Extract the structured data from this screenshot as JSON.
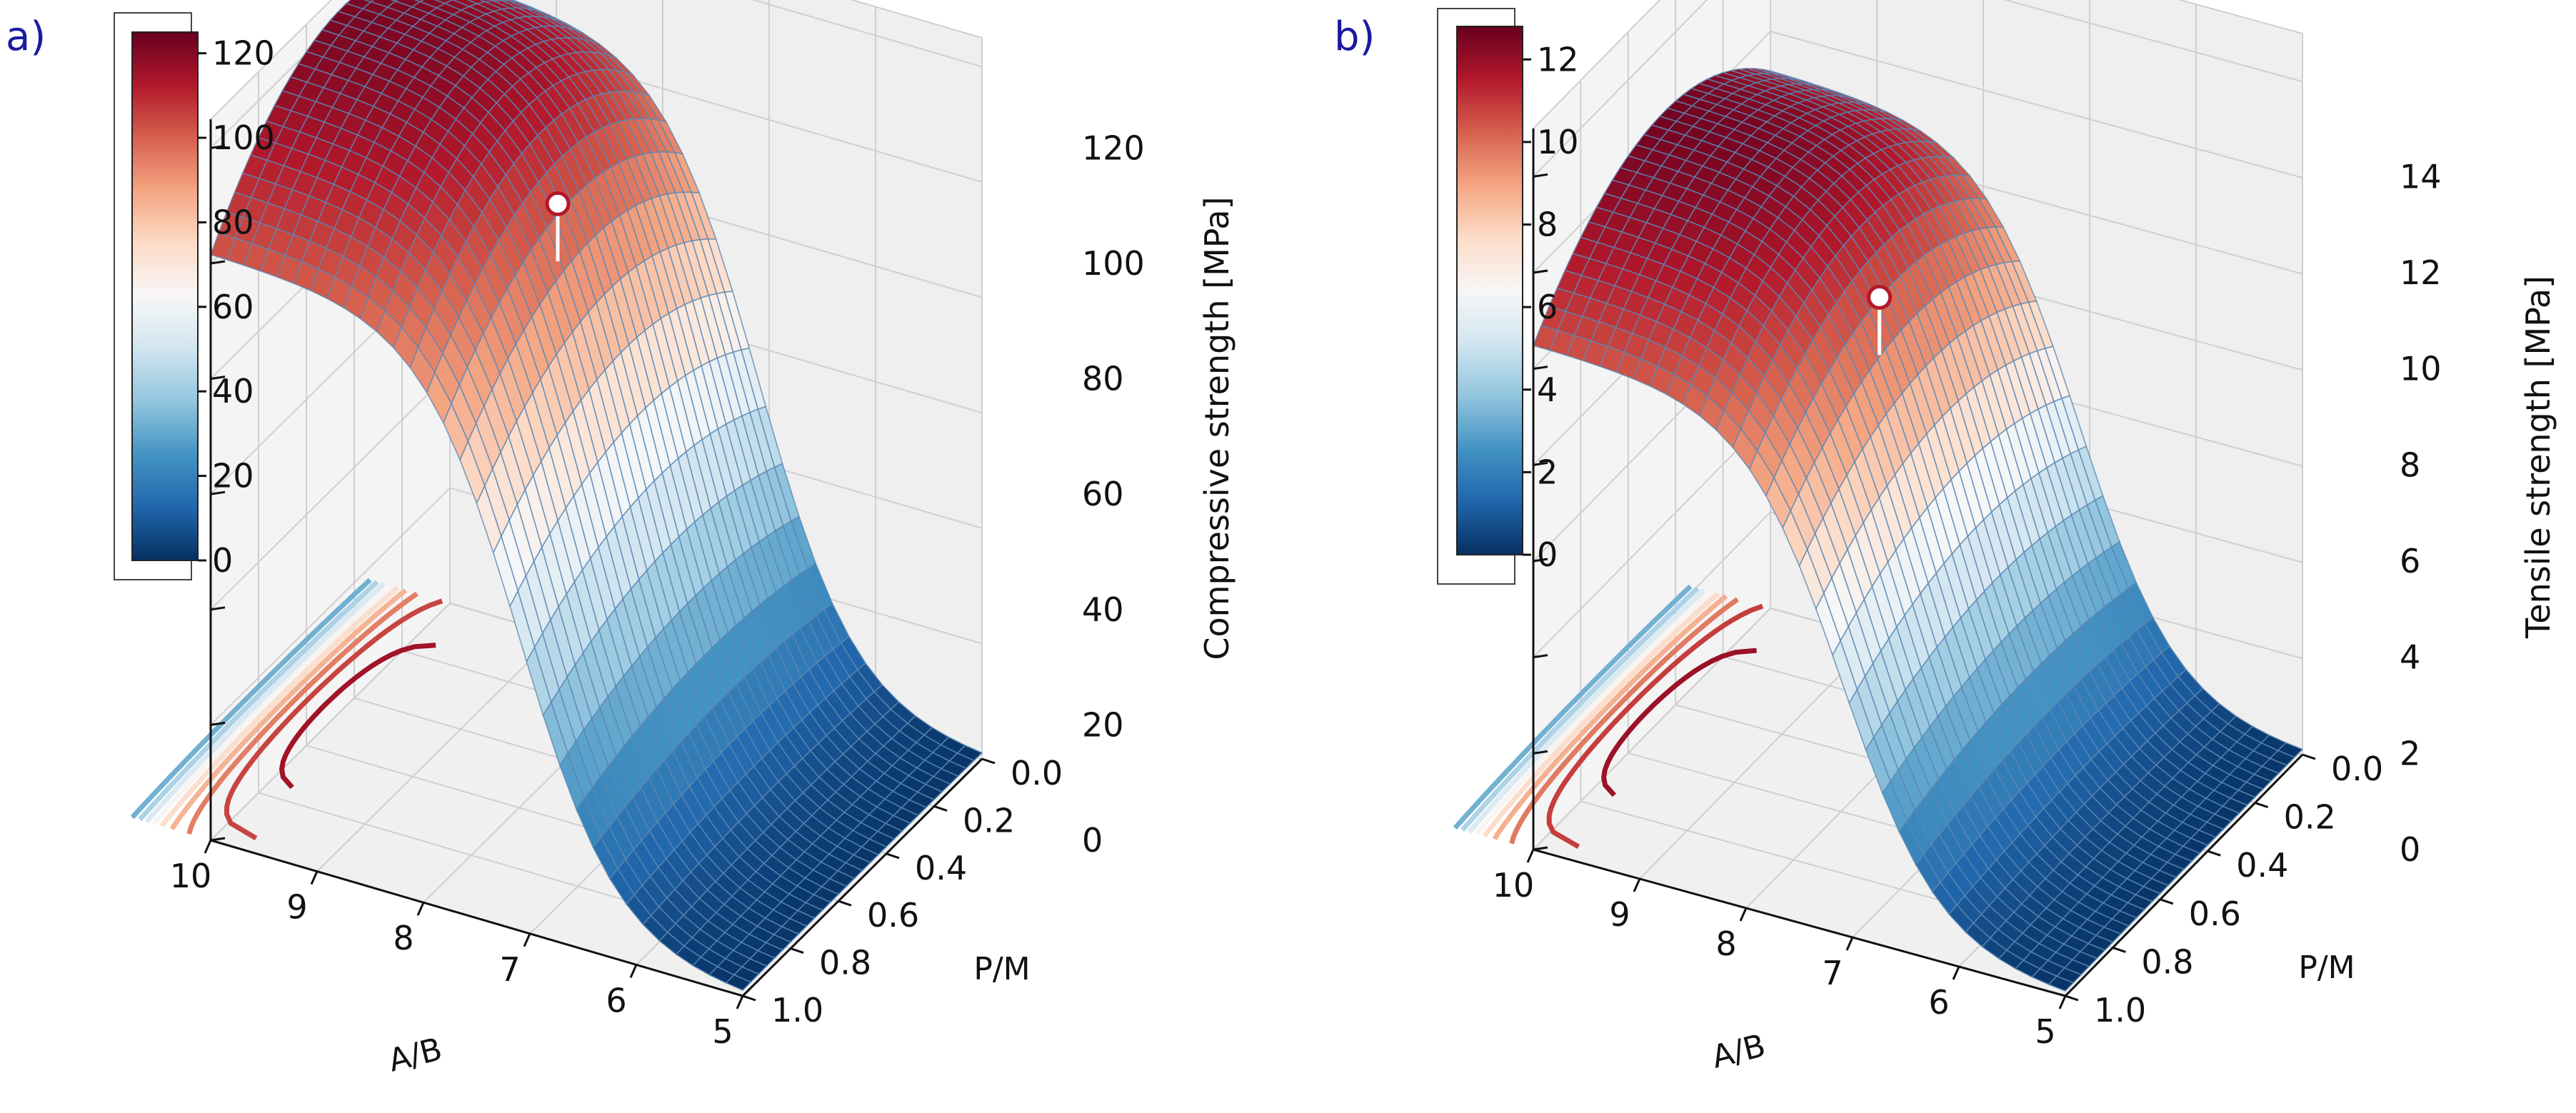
{
  "chart_data": [
    {
      "type": "surface3d",
      "panel_label": "a)",
      "zlabel": "Compressive strength [MPa]",
      "xlabel": "A/B",
      "ylabel": "P/M",
      "x_ticks": [
        "10",
        "9",
        "8",
        "7",
        "6",
        "5"
      ],
      "y_ticks": [
        "0.0",
        "0.2",
        "0.4",
        "0.6",
        "0.8",
        "1.0"
      ],
      "z_ticks": [
        "0",
        "20",
        "40",
        "60",
        "80",
        "100",
        "120"
      ],
      "xlim": [
        5,
        10
      ],
      "ylim": [
        0,
        1
      ],
      "zlim": [
        0,
        125
      ],
      "colorbar": {
        "ticks": [
          "0",
          "20",
          "40",
          "60",
          "80",
          "100",
          "120"
        ],
        "range": [
          0,
          125
        ],
        "colormap": "RdBu_r"
      },
      "peak_value": 122,
      "marker": {
        "value": 104,
        "stem_to": 94
      }
    },
    {
      "type": "surface3d",
      "panel_label": "b)",
      "zlabel": "Tensile strength [MPa]",
      "xlabel": "A/B",
      "ylabel": "P/M",
      "x_ticks": [
        "10",
        "9",
        "8",
        "7",
        "6",
        "5"
      ],
      "y_ticks": [
        "0.0",
        "0.2",
        "0.4",
        "0.6",
        "0.8",
        "1.0"
      ],
      "z_ticks": [
        "0",
        "2",
        "4",
        "6",
        "8",
        "10",
        "12",
        "14"
      ],
      "xlim": [
        5,
        10
      ],
      "ylim": [
        0,
        1
      ],
      "zlim": [
        0,
        15
      ],
      "colorbar": {
        "ticks": [
          "0",
          "2",
          "4",
          "6",
          "8",
          "10",
          "12"
        ],
        "range": [
          0,
          12.8
        ],
        "colormap": "RdBu_r"
      },
      "peak_value": 12.6,
      "marker": {
        "value": 10.6,
        "stem_to": 9.4
      }
    }
  ],
  "colors": {
    "panel_label": "#1a1aa0",
    "axes_text": "#111111",
    "pane": "#efefef",
    "grid": "#cfcfcf",
    "mesh": "#5b87b3",
    "marker_fill": "#ffffff"
  }
}
